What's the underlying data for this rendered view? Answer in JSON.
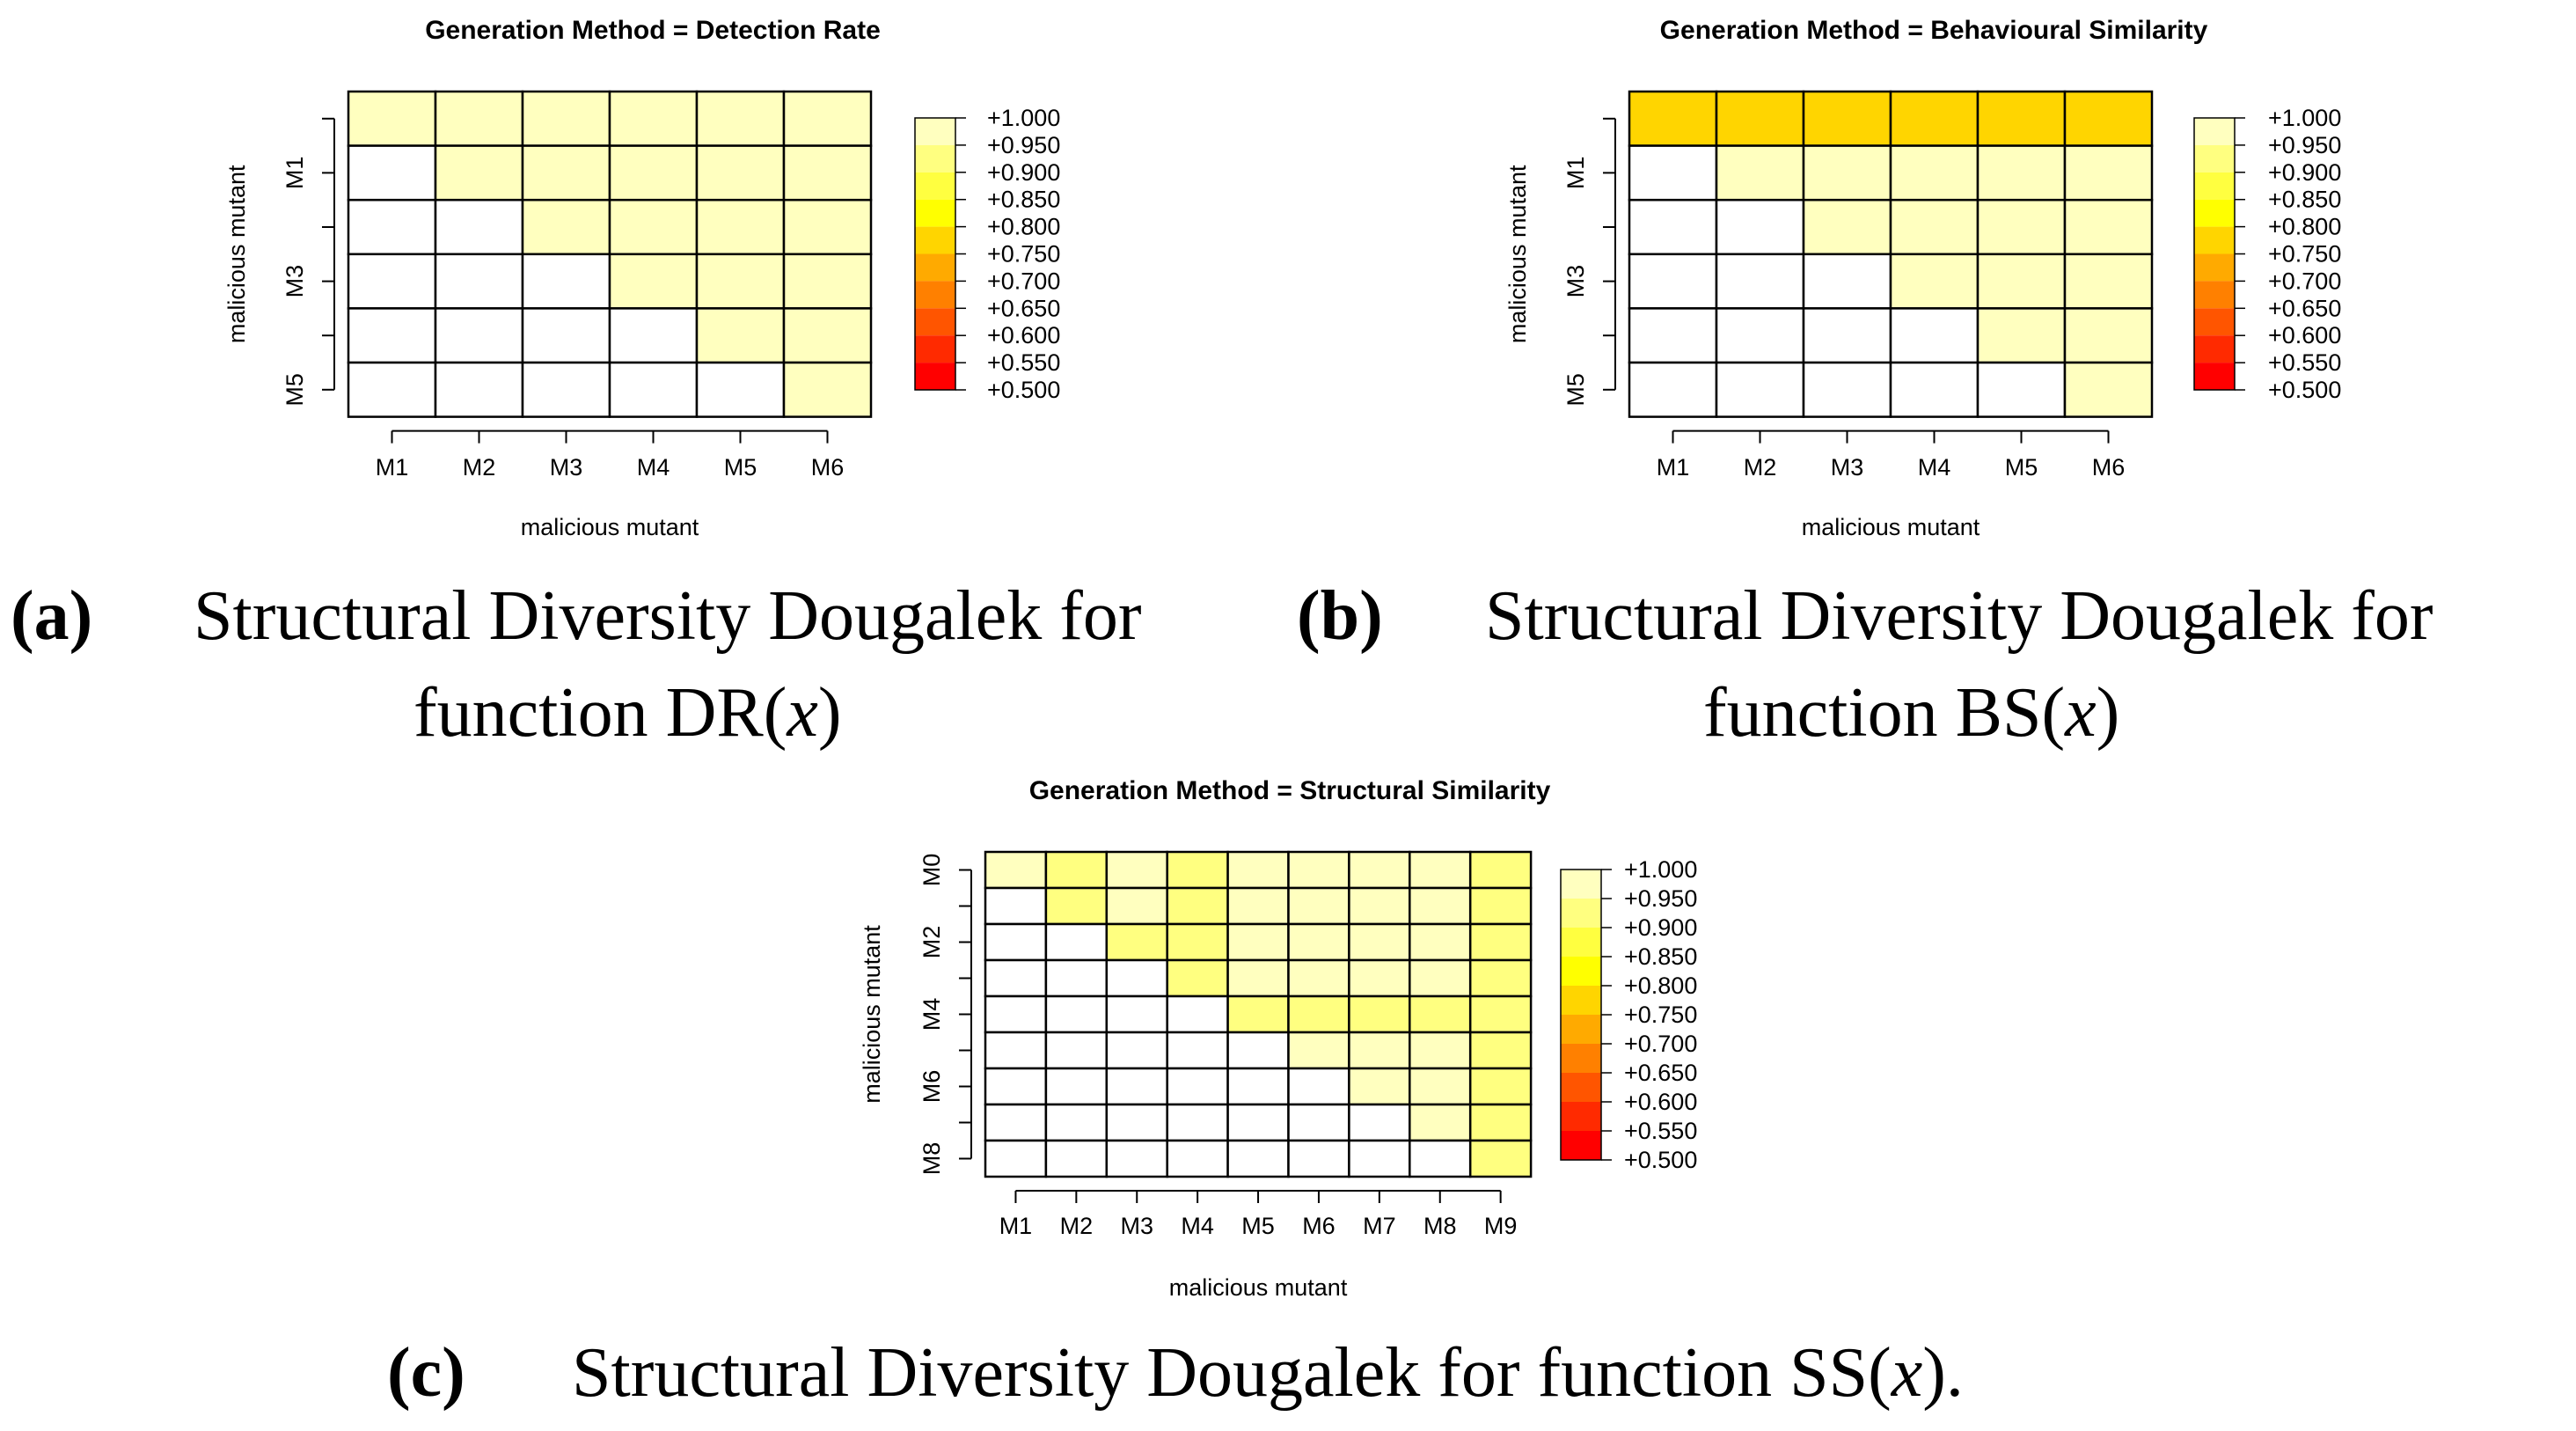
{
  "colors": {
    "scale": [
      "#FF0000",
      "#FF2A00",
      "#FF5500",
      "#FF8000",
      "#FFAA00",
      "#FFD500",
      "#FFFF00",
      "#FFFF40",
      "#FFFF80",
      "#FFFFBF"
    ],
    "empty": "#FFFFFF",
    "grid": "#000000"
  },
  "chart_data": [
    {
      "type": "heatmap",
      "title": "Generation Method = Detection Rate",
      "xlabel": "malicious mutant",
      "ylabel": "malicious mutant",
      "x_categories": [
        "M1",
        "M2",
        "M3",
        "M4",
        "M5",
        "M6"
      ],
      "y_tick_labels": [
        "M1",
        "M3",
        "M5"
      ],
      "rows": 6,
      "values": [
        [
          1.0,
          1.0,
          1.0,
          1.0,
          1.0,
          1.0
        ],
        [
          null,
          1.0,
          1.0,
          1.0,
          1.0,
          1.0
        ],
        [
          null,
          null,
          1.0,
          1.0,
          1.0,
          1.0
        ],
        [
          null,
          null,
          null,
          1.0,
          1.0,
          1.0
        ],
        [
          null,
          null,
          null,
          null,
          1.0,
          1.0
        ],
        [
          null,
          null,
          null,
          null,
          null,
          1.0
        ]
      ],
      "legend_labels": [
        "+1.000",
        "+0.950",
        "+0.900",
        "+0.850",
        "+0.800",
        "+0.750",
        "+0.700",
        "+0.650",
        "+0.600",
        "+0.550",
        "+0.500"
      ],
      "value_range": [
        0.5,
        1.0
      ]
    },
    {
      "type": "heatmap",
      "title": "Generation Method = Behavioural Similarity",
      "xlabel": "malicious mutant",
      "ylabel": "malicious mutant",
      "x_categories": [
        "M1",
        "M2",
        "M3",
        "M4",
        "M5",
        "M6"
      ],
      "y_tick_labels": [
        "M1",
        "M3",
        "M5"
      ],
      "rows": 6,
      "values": [
        [
          0.78,
          0.78,
          0.78,
          0.78,
          0.78,
          0.78
        ],
        [
          null,
          0.98,
          0.98,
          0.98,
          0.98,
          0.98
        ],
        [
          null,
          null,
          0.98,
          0.98,
          0.98,
          0.98
        ],
        [
          null,
          null,
          null,
          0.98,
          0.98,
          0.98
        ],
        [
          null,
          null,
          null,
          null,
          0.98,
          0.98
        ],
        [
          null,
          null,
          null,
          null,
          null,
          0.98
        ]
      ],
      "legend_labels": [
        "+1.000",
        "+0.950",
        "+0.900",
        "+0.850",
        "+0.800",
        "+0.750",
        "+0.700",
        "+0.650",
        "+0.600",
        "+0.550",
        "+0.500"
      ],
      "value_range": [
        0.5,
        1.0
      ]
    },
    {
      "type": "heatmap",
      "title": "Generation Method = Structural Similarity",
      "xlabel": "malicious mutant",
      "ylabel": "malicious mutant",
      "x_categories": [
        "M1",
        "M2",
        "M3",
        "M4",
        "M5",
        "M6",
        "M7",
        "M8",
        "M9"
      ],
      "y_tick_labels": [
        "M0",
        "M2",
        "M4",
        "M6",
        "M8"
      ],
      "rows": 9,
      "values": [
        [
          0.98,
          0.93,
          0.96,
          0.93,
          0.96,
          0.96,
          0.96,
          0.96,
          0.94
        ],
        [
          null,
          0.93,
          0.96,
          0.93,
          0.96,
          0.96,
          0.96,
          0.96,
          0.94
        ],
        [
          null,
          null,
          0.93,
          0.93,
          0.96,
          0.96,
          0.96,
          0.96,
          0.94
        ],
        [
          null,
          null,
          null,
          0.93,
          0.96,
          0.96,
          0.96,
          0.96,
          0.94
        ],
        [
          null,
          null,
          null,
          null,
          0.93,
          0.93,
          0.93,
          0.93,
          0.93
        ],
        [
          null,
          null,
          null,
          null,
          null,
          0.97,
          0.97,
          0.97,
          0.93
        ],
        [
          null,
          null,
          null,
          null,
          null,
          null,
          0.96,
          0.96,
          0.93
        ],
        [
          null,
          null,
          null,
          null,
          null,
          null,
          null,
          0.98,
          0.93
        ],
        [
          null,
          null,
          null,
          null,
          null,
          null,
          null,
          null,
          0.93
        ]
      ],
      "legend_labels": [
        "+1.000",
        "+0.950",
        "+0.900",
        "+0.850",
        "+0.800",
        "+0.750",
        "+0.700",
        "+0.650",
        "+0.600",
        "+0.550",
        "+0.500"
      ],
      "value_range": [
        0.5,
        1.0
      ]
    }
  ],
  "captions": {
    "a": {
      "label": "(a)",
      "line1": "Structural Diversity  Dougalek for",
      "line2_prefix": "function DR(",
      "line2_var": "x",
      "line2_suffix": ")"
    },
    "b": {
      "label": "(b)",
      "line1": "Structural Diversity Dougalek for",
      "line2_prefix": "function BS(",
      "line2_var": "x",
      "line2_suffix": ")"
    },
    "c": {
      "label": "(c)",
      "line1_prefix": "Structural   Diversity Dougalek for function SS(",
      "line1_var": "x",
      "line1_suffix": ")."
    }
  }
}
